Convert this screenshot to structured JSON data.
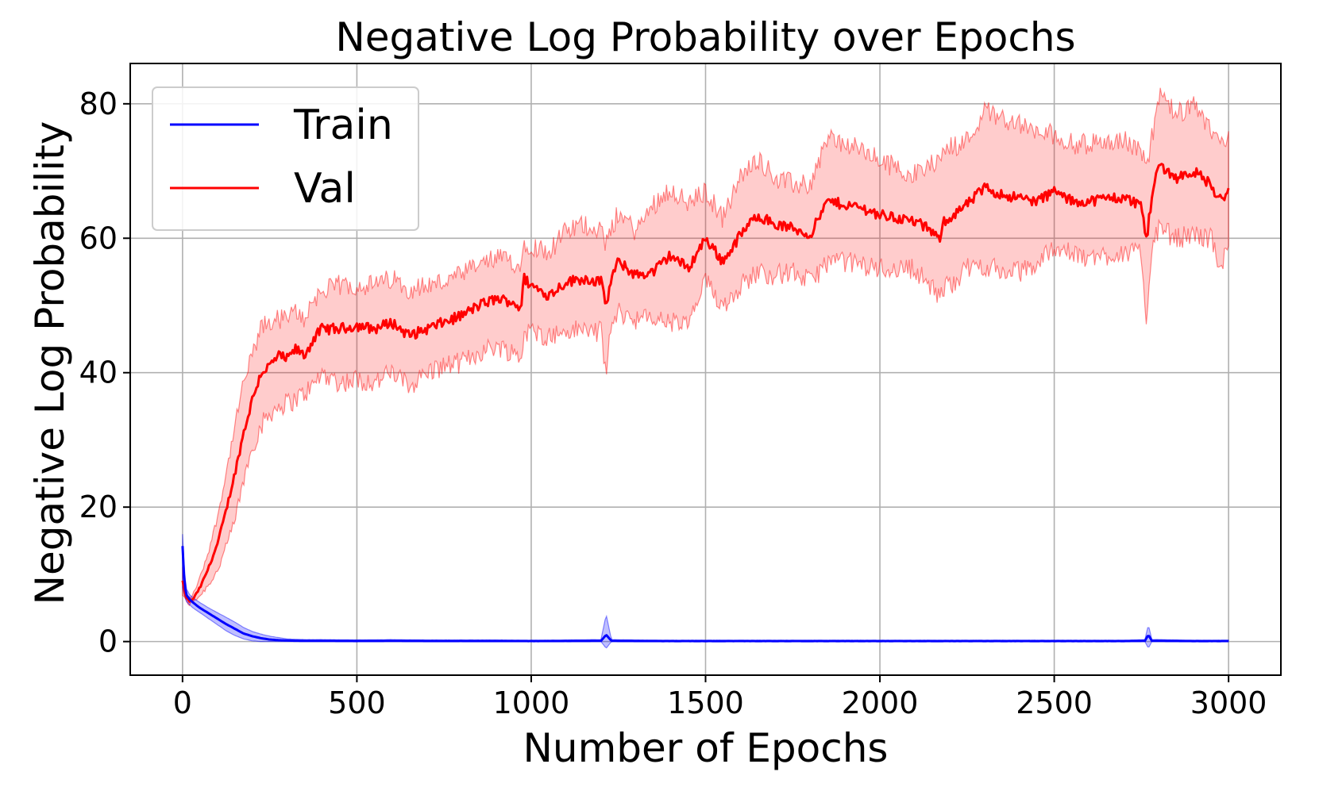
{
  "chart_data": {
    "type": "line",
    "title": "Negative Log Probability over Epochs",
    "xlabel": "Number of Epochs",
    "ylabel": "Negative Log Probability",
    "xlim": [
      -150,
      3150
    ],
    "ylim": [
      -5,
      86
    ],
    "xticks": [
      0,
      500,
      1000,
      1500,
      2000,
      2500,
      3000
    ],
    "yticks": [
      0,
      20,
      40,
      60,
      80
    ],
    "grid": true,
    "legend_position": "top-left",
    "series": [
      {
        "name": "Train",
        "color": "#0000ff",
        "band_color": "#0000ff",
        "x": [
          0,
          5,
          10,
          20,
          30,
          50,
          75,
          100,
          125,
          150,
          175,
          200,
          225,
          250,
          275,
          300,
          350,
          400,
          500,
          600,
          700,
          800,
          900,
          1000,
          1100,
          1200,
          1215,
          1230,
          1300,
          1400,
          1500,
          1600,
          1700,
          1800,
          1900,
          2000,
          2100,
          2200,
          2300,
          2400,
          2500,
          2600,
          2700,
          2760,
          2770,
          2780,
          2800,
          2900,
          3000
        ],
        "values": [
          14.2,
          9.0,
          7.0,
          6.3,
          5.8,
          5.0,
          4.2,
          3.4,
          2.6,
          1.9,
          1.2,
          0.8,
          0.5,
          0.3,
          0.2,
          0.15,
          0.1,
          0.1,
          0.08,
          0.1,
          0.08,
          0.08,
          0.08,
          0.07,
          0.08,
          0.1,
          1.0,
          0.1,
          0.08,
          0.07,
          0.07,
          0.07,
          0.07,
          0.07,
          0.07,
          0.07,
          0.07,
          0.07,
          0.07,
          0.07,
          0.07,
          0.07,
          0.07,
          0.1,
          1.0,
          0.1,
          0.1,
          0.07,
          0.07
        ],
        "lower": [
          8.0,
          7.0,
          6.0,
          5.5,
          5.0,
          4.3,
          3.4,
          2.5,
          1.6,
          0.9,
          0.4,
          0.1,
          0.0,
          0.0,
          0.0,
          0.0,
          0.0,
          0.0,
          0.0,
          0.0,
          0.0,
          0.0,
          0.0,
          0.0,
          0.0,
          0.0,
          -1.0,
          0.0,
          0.0,
          0.0,
          0.0,
          0.0,
          0.0,
          0.0,
          0.0,
          0.0,
          0.0,
          0.0,
          0.0,
          0.0,
          0.0,
          0.0,
          0.0,
          0.0,
          -1.0,
          0.0,
          0.0,
          0.0,
          0.0
        ],
        "upper": [
          16.0,
          11.0,
          8.0,
          7.0,
          6.5,
          5.8,
          5.0,
          4.3,
          3.6,
          2.9,
          2.1,
          1.5,
          1.1,
          0.8,
          0.6,
          0.4,
          0.3,
          0.3,
          0.25,
          0.3,
          0.25,
          0.25,
          0.25,
          0.2,
          0.25,
          0.3,
          4.0,
          0.3,
          0.25,
          0.2,
          0.2,
          0.2,
          0.2,
          0.2,
          0.2,
          0.2,
          0.2,
          0.2,
          0.2,
          0.2,
          0.2,
          0.2,
          0.2,
          0.3,
          2.5,
          0.3,
          0.3,
          0.2,
          0.2
        ]
      },
      {
        "name": "Val",
        "color": "#ff0000",
        "band_color": "#ff0000",
        "x": [
          0,
          10,
          20,
          30,
          50,
          75,
          100,
          125,
          150,
          175,
          200,
          225,
          250,
          275,
          300,
          325,
          350,
          375,
          400,
          450,
          500,
          550,
          600,
          650,
          700,
          750,
          800,
          850,
          900,
          950,
          970,
          980,
          1000,
          1050,
          1100,
          1150,
          1200,
          1215,
          1230,
          1250,
          1300,
          1350,
          1400,
          1450,
          1500,
          1550,
          1600,
          1650,
          1700,
          1750,
          1800,
          1850,
          1900,
          1950,
          2000,
          2050,
          2100,
          2150,
          2170,
          2180,
          2200,
          2250,
          2300,
          2350,
          2400,
          2450,
          2500,
          2550,
          2600,
          2650,
          2700,
          2750,
          2765,
          2780,
          2800,
          2850,
          2900,
          2950,
          2970,
          3000
        ],
        "values": [
          9.0,
          6.5,
          6.0,
          6.3,
          8.0,
          11.0,
          14.5,
          19.5,
          25.0,
          31.0,
          36.0,
          40.0,
          41.0,
          42.5,
          42.0,
          43.5,
          42.5,
          45.0,
          46.5,
          46.5,
          47.0,
          46.5,
          47.5,
          45.5,
          46.5,
          47.5,
          48.5,
          50.0,
          51.0,
          50.5,
          49.5,
          54.0,
          53.0,
          51.5,
          53.5,
          54.0,
          53.5,
          50.0,
          54.0,
          56.5,
          54.5,
          55.0,
          57.5,
          55.5,
          60.0,
          56.5,
          60.5,
          63.5,
          62.0,
          61.5,
          60.5,
          65.5,
          65.0,
          64.5,
          63.5,
          63.0,
          62.5,
          61.0,
          59.5,
          62.5,
          63.0,
          65.0,
          67.5,
          66.5,
          66.0,
          65.5,
          67.0,
          65.5,
          65.5,
          66.0,
          66.0,
          65.0,
          59.5,
          66.5,
          71.0,
          69.0,
          70.0,
          68.0,
          65.5,
          67.0
        ],
        "lower": [
          7.0,
          6.0,
          5.5,
          6.0,
          6.8,
          8.5,
          10.5,
          14.0,
          18.0,
          24.0,
          29.0,
          32.0,
          34.0,
          35.0,
          35.5,
          36.0,
          37.0,
          38.0,
          40.0,
          38.5,
          39.0,
          38.5,
          40.0,
          38.0,
          40.0,
          41.0,
          41.5,
          43.0,
          44.0,
          43.0,
          42.0,
          46.0,
          46.0,
          45.5,
          46.0,
          46.5,
          46.0,
          40.0,
          47.0,
          49.0,
          48.0,
          48.0,
          47.5,
          47.0,
          53.5,
          50.0,
          53.0,
          55.0,
          54.5,
          55.0,
          53.5,
          56.5,
          56.5,
          56.0,
          55.5,
          55.5,
          55.5,
          52.5,
          51.0,
          52.5,
          53.0,
          55.5,
          56.0,
          55.0,
          55.0,
          56.0,
          59.0,
          57.5,
          57.0,
          57.5,
          58.0,
          57.5,
          48.0,
          58.5,
          61.5,
          60.0,
          60.5,
          60.0,
          56.0,
          58.0
        ],
        "upper": [
          11.0,
          7.0,
          6.5,
          7.0,
          9.5,
          13.5,
          18.5,
          25.0,
          32.0,
          38.5,
          42.5,
          46.5,
          47.5,
          48.0,
          48.0,
          49.0,
          48.0,
          51.0,
          52.0,
          53.0,
          53.0,
          53.0,
          54.0,
          52.5,
          53.0,
          53.5,
          54.5,
          56.0,
          57.0,
          56.5,
          55.5,
          59.5,
          59.0,
          58.0,
          61.0,
          62.0,
          61.5,
          59.0,
          61.0,
          64.0,
          61.0,
          65.0,
          67.5,
          65.0,
          67.0,
          63.0,
          69.0,
          72.0,
          69.0,
          68.0,
          68.0,
          75.0,
          74.0,
          73.0,
          71.5,
          70.5,
          69.5,
          71.0,
          72.5,
          72.5,
          73.5,
          74.5,
          79.0,
          78.0,
          77.0,
          75.5,
          75.5,
          74.0,
          74.0,
          74.5,
          74.5,
          73.0,
          71.0,
          75.0,
          81.0,
          78.5,
          79.5,
          76.0,
          75.0,
          75.0
        ]
      }
    ]
  }
}
